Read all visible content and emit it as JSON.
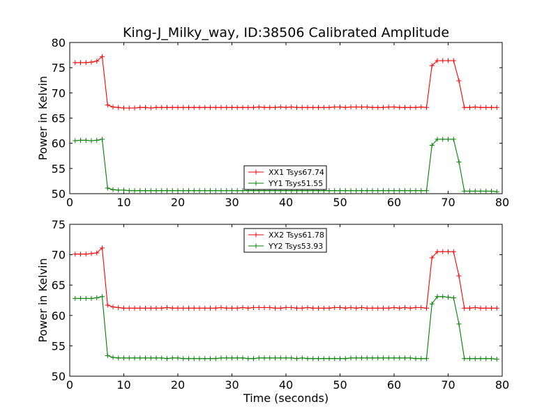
{
  "figure_title": "King-J_Milky_way, ID:38506 Calibrated Amplitude",
  "colors": {
    "xx": "#ff0000",
    "yy": "#008000"
  },
  "chart_data": [
    {
      "type": "line",
      "title": "King-J_Milky_way, ID:38506 Calibrated Amplitude",
      "xlabel": "",
      "ylabel": "Power in Kelvin",
      "xlim": [
        0,
        80
      ],
      "ylim": [
        50,
        80
      ],
      "xticks": [
        0,
        10,
        20,
        30,
        40,
        50,
        60,
        70,
        80
      ],
      "yticks": [
        50,
        55,
        60,
        65,
        70,
        75,
        80
      ],
      "legend_position": "lower-center",
      "grid": false,
      "x": [
        1,
        2,
        3,
        4,
        5,
        6,
        7,
        8,
        9,
        10,
        11,
        12,
        13,
        14,
        15,
        16,
        17,
        18,
        19,
        20,
        21,
        22,
        23,
        24,
        25,
        26,
        27,
        28,
        29,
        30,
        31,
        32,
        33,
        34,
        35,
        36,
        37,
        38,
        39,
        40,
        41,
        42,
        43,
        44,
        45,
        46,
        47,
        48,
        49,
        50,
        51,
        52,
        53,
        54,
        55,
        56,
        57,
        58,
        59,
        60,
        61,
        62,
        63,
        64,
        65,
        66,
        67,
        68,
        69,
        70,
        71,
        72,
        73,
        74,
        75,
        76,
        77,
        78,
        79
      ],
      "series": [
        {
          "name": "XX1 Tsys67.74",
          "color": "#ff0000",
          "values": [
            76.0,
            76.0,
            76.0,
            76.1,
            76.3,
            77.2,
            67.6,
            67.2,
            67.1,
            67.0,
            67.0,
            67.0,
            67.1,
            67.1,
            67.0,
            67.1,
            67.1,
            67.1,
            67.1,
            67.1,
            67.1,
            67.1,
            67.1,
            67.1,
            67.1,
            67.1,
            67.1,
            67.1,
            67.1,
            67.1,
            67.1,
            67.1,
            67.1,
            67.1,
            67.2,
            67.1,
            67.1,
            67.1,
            67.2,
            67.1,
            67.2,
            67.1,
            67.1,
            67.1,
            67.1,
            67.1,
            67.1,
            67.1,
            67.2,
            67.2,
            67.1,
            67.2,
            67.2,
            67.2,
            67.2,
            67.1,
            67.1,
            67.1,
            67.2,
            67.2,
            67.1,
            67.1,
            67.1,
            67.1,
            67.2,
            67.1,
            75.4,
            76.4,
            76.4,
            76.4,
            76.4,
            72.4,
            67.1,
            67.1,
            67.2,
            67.1,
            67.1,
            67.1,
            67.1
          ]
        },
        {
          "name": "YY1 Tsys51.55",
          "color": "#008000",
          "values": [
            60.5,
            60.6,
            60.6,
            60.5,
            60.6,
            60.8,
            51.1,
            50.8,
            50.7,
            50.7,
            50.6,
            50.6,
            50.6,
            50.6,
            50.6,
            50.6,
            50.6,
            50.6,
            50.6,
            50.6,
            50.6,
            50.6,
            50.6,
            50.6,
            50.6,
            50.6,
            50.6,
            50.6,
            50.6,
            50.6,
            50.6,
            50.6,
            50.6,
            50.6,
            50.6,
            50.6,
            50.6,
            50.6,
            50.6,
            50.6,
            50.6,
            50.6,
            50.6,
            50.6,
            50.6,
            50.6,
            50.6,
            50.6,
            50.6,
            50.6,
            50.6,
            50.6,
            50.6,
            50.6,
            50.6,
            50.6,
            50.6,
            50.6,
            50.6,
            50.6,
            50.6,
            50.6,
            50.6,
            50.6,
            50.6,
            50.6,
            59.6,
            60.8,
            60.8,
            60.8,
            60.8,
            56.3,
            50.5,
            50.5,
            50.5,
            50.5,
            50.5,
            50.5,
            50.4
          ]
        }
      ]
    },
    {
      "type": "line",
      "title": "",
      "xlabel": "Time (seconds)",
      "ylabel": "Power in Kelvin",
      "xlim": [
        0,
        80
      ],
      "ylim": [
        50,
        75
      ],
      "xticks": [
        0,
        10,
        20,
        30,
        40,
        50,
        60,
        70,
        80
      ],
      "yticks": [
        50,
        55,
        60,
        65,
        70,
        75
      ],
      "legend_position": "upper-center",
      "grid": false,
      "x": [
        1,
        2,
        3,
        4,
        5,
        6,
        7,
        8,
        9,
        10,
        11,
        12,
        13,
        14,
        15,
        16,
        17,
        18,
        19,
        20,
        21,
        22,
        23,
        24,
        25,
        26,
        27,
        28,
        29,
        30,
        31,
        32,
        33,
        34,
        35,
        36,
        37,
        38,
        39,
        40,
        41,
        42,
        43,
        44,
        45,
        46,
        47,
        48,
        49,
        50,
        51,
        52,
        53,
        54,
        55,
        56,
        57,
        58,
        59,
        60,
        61,
        62,
        63,
        64,
        65,
        66,
        67,
        68,
        69,
        70,
        71,
        72,
        73,
        74,
        75,
        76,
        77,
        78,
        79
      ],
      "series": [
        {
          "name": "XX2 Tsys61.78",
          "color": "#ff0000",
          "values": [
            70.1,
            70.1,
            70.1,
            70.2,
            70.3,
            71.1,
            61.7,
            61.4,
            61.3,
            61.2,
            61.2,
            61.2,
            61.2,
            61.2,
            61.2,
            61.2,
            61.2,
            61.3,
            61.2,
            61.2,
            61.2,
            61.2,
            61.2,
            61.2,
            61.2,
            61.2,
            61.2,
            61.3,
            61.2,
            61.2,
            61.2,
            61.3,
            61.2,
            61.3,
            61.3,
            61.3,
            61.3,
            61.2,
            61.2,
            61.3,
            61.3,
            61.2,
            61.2,
            61.3,
            61.2,
            61.2,
            61.2,
            61.2,
            61.3,
            61.3,
            61.2,
            61.3,
            61.2,
            61.3,
            61.2,
            61.2,
            61.2,
            61.2,
            61.2,
            61.3,
            61.2,
            61.3,
            61.2,
            61.3,
            61.3,
            61.2,
            69.5,
            70.5,
            70.5,
            70.5,
            70.5,
            66.5,
            61.2,
            61.2,
            61.3,
            61.2,
            61.2,
            61.2,
            61.2
          ]
        },
        {
          "name": "YY2 Tsys53.93",
          "color": "#008000",
          "values": [
            62.8,
            62.8,
            62.8,
            62.8,
            62.9,
            63.1,
            53.4,
            53.1,
            53.0,
            53.0,
            53.0,
            53.0,
            53.0,
            53.0,
            53.0,
            53.0,
            53.0,
            52.9,
            53.0,
            53.0,
            52.9,
            52.9,
            52.9,
            52.9,
            52.9,
            52.9,
            52.9,
            53.0,
            53.0,
            53.0,
            53.0,
            53.0,
            52.9,
            52.9,
            53.0,
            53.0,
            53.0,
            53.0,
            53.0,
            53.0,
            53.0,
            52.9,
            53.0,
            52.9,
            52.9,
            52.9,
            52.9,
            52.9,
            52.9,
            52.9,
            52.9,
            53.0,
            53.0,
            53.0,
            53.0,
            53.0,
            53.0,
            53.0,
            53.0,
            53.0,
            53.0,
            53.0,
            53.0,
            52.9,
            52.9,
            52.9,
            61.9,
            63.1,
            63.1,
            63.0,
            62.9,
            58.6,
            52.9,
            52.9,
            52.9,
            52.9,
            52.9,
            52.9,
            52.8
          ]
        }
      ]
    }
  ]
}
